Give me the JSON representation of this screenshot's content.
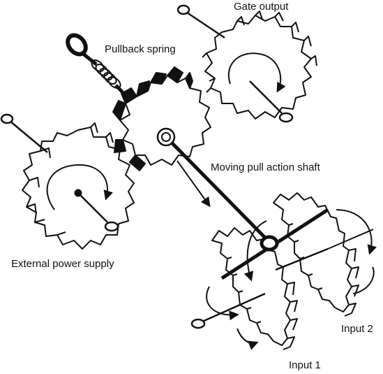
{
  "labels": {
    "gate_output": "Gate output",
    "pullback_spring": "Pullback spring",
    "moving_pull_action_shaft": "Moving pull action shaft",
    "external_power_supply": "External power supply",
    "input_2": "Input 2",
    "input_1": "Input 1"
  },
  "colors": {
    "ink": "#111111",
    "background": "#ffffff"
  }
}
